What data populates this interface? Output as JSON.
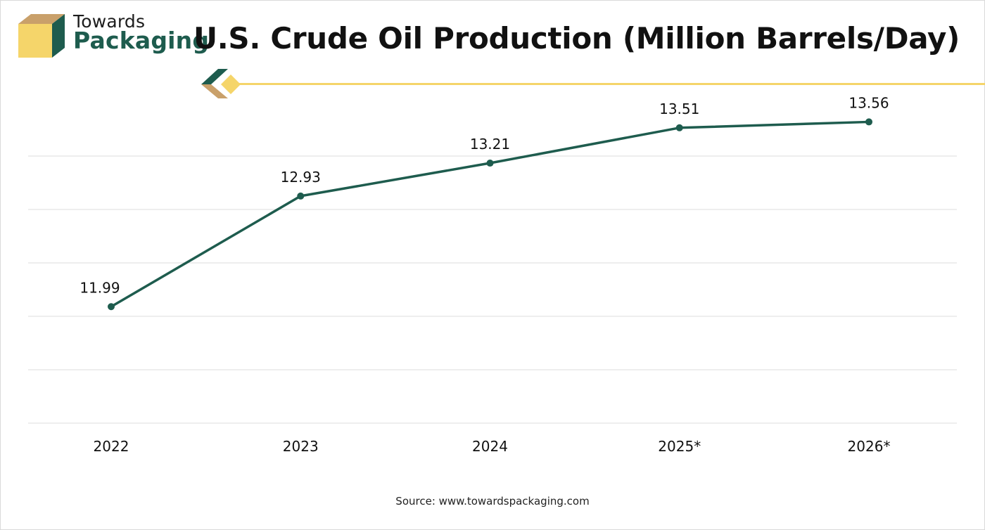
{
  "brand": {
    "name_top": "Towards",
    "name_bottom": "Packaging"
  },
  "header": {
    "title": "U.S. Crude Oil Production (Million Barrels/Day)"
  },
  "footer": {
    "source": "Source: www.towardspackaging.com"
  },
  "colors": {
    "series_line": "#1e5c4e",
    "brand_green": "#1e5c4e",
    "brand_yellow": "#f5d56a",
    "brand_tan": "#c9a06a",
    "grid": "#dcdcdc"
  },
  "chart_data": {
    "type": "line",
    "title": "U.S. Crude Oil Production (Million Barrels/Day)",
    "categories": [
      "2022",
      "2023",
      "2024",
      "2025*",
      "2026*"
    ],
    "series": [
      {
        "values": [
          11.99,
          12.93,
          13.21,
          13.51,
          13.56
        ]
      }
    ],
    "data_labels": [
      "11.99",
      "12.93",
      "13.21",
      "13.51",
      "13.56"
    ],
    "xlabel": "",
    "ylabel": "",
    "ylim": [
      11.0,
      13.7
    ],
    "grid": true,
    "legend": "none"
  }
}
